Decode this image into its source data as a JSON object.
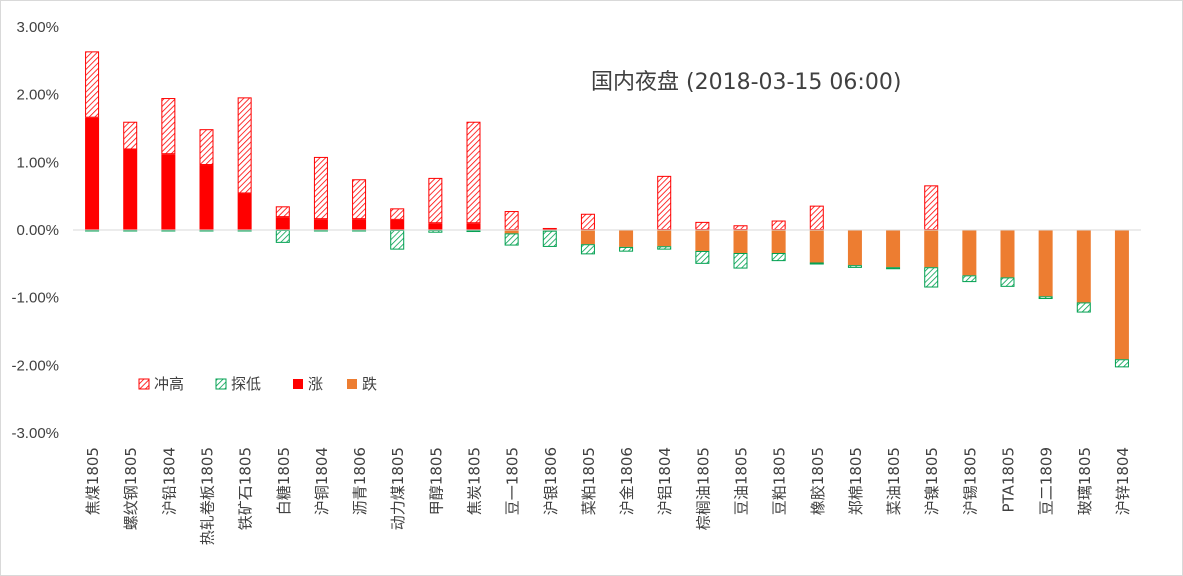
{
  "chart_data": {
    "type": "bar",
    "title": "国内夜盘 (2018-03-15 06:00)",
    "xlabel": "",
    "ylabel": "",
    "ylim": [
      -3,
      3
    ],
    "yticks": [
      "3.00%",
      "2.00%",
      "1.00%",
      "0.00%",
      "-1.00%",
      "-2.00%",
      "-3.00%"
    ],
    "grid": false,
    "legend_position": "lower-left",
    "categories": [
      "焦煤1805",
      "螺纹钢1805",
      "沪铅1804",
      "热轧卷板1805",
      "铁矿石1805",
      "白糖1805",
      "沪铜1804",
      "沥青1806",
      "动力煤1805",
      "甲醇1805",
      "焦炭1805",
      "豆一1805",
      "沪银1806",
      "菜粕1805",
      "沪金1806",
      "沪铝1804",
      "棕榈油1805",
      "豆油1805",
      "豆粕1805",
      "橡胶1805",
      "郑棉1805",
      "菜油1805",
      "沪镍1805",
      "沪锡1805",
      "PTA1805",
      "豆二1809",
      "玻璃1805",
      "沪锌1804"
    ],
    "series": [
      {
        "name": "冲高",
        "values": [
          0.98,
          0.41,
          0.83,
          0.53,
          1.42,
          0.16,
          0.92,
          0.59,
          0.17,
          0.67,
          1.5,
          0.28,
          0.03,
          0.24,
          0,
          0.8,
          0.12,
          0.07,
          0.14,
          0.36,
          0,
          0,
          0.66,
          0,
          0,
          0,
          0,
          0
        ]
      },
      {
        "name": "探低",
        "values": [
          -0.02,
          -0.01,
          -0.02,
          -0.01,
          -0.01,
          -0.19,
          -0.02,
          -0.01,
          -0.29,
          -0.04,
          -0.03,
          -0.18,
          -0.24,
          -0.15,
          -0.07,
          -0.05,
          -0.19,
          -0.23,
          -0.12,
          -0.03,
          -0.04,
          -0.03,
          -0.3,
          -0.1,
          -0.14,
          -0.04,
          -0.15,
          -0.12
        ]
      },
      {
        "name": "涨",
        "values": [
          1.66,
          1.19,
          1.12,
          0.96,
          0.54,
          0.19,
          0.16,
          0.16,
          0.15,
          0.1,
          0.1,
          0,
          0,
          0,
          0,
          0,
          0,
          0,
          0,
          0,
          0,
          0,
          0,
          0,
          0,
          0,
          0,
          0
        ]
      },
      {
        "name": "跌",
        "values": [
          0,
          0,
          0,
          0,
          0,
          0,
          0,
          0,
          0,
          0,
          0,
          -0.05,
          -0.01,
          -0.21,
          -0.25,
          -0.24,
          -0.31,
          -0.34,
          -0.34,
          -0.48,
          -0.52,
          -0.55,
          -0.55,
          -0.67,
          -0.7,
          -0.98,
          -1.07,
          -1.91
        ]
      }
    ],
    "colors": {
      "冲高": "#ff0000",
      "探低": "#00a050",
      "涨": "#ff0000",
      "跌": "#ed7d31"
    }
  }
}
